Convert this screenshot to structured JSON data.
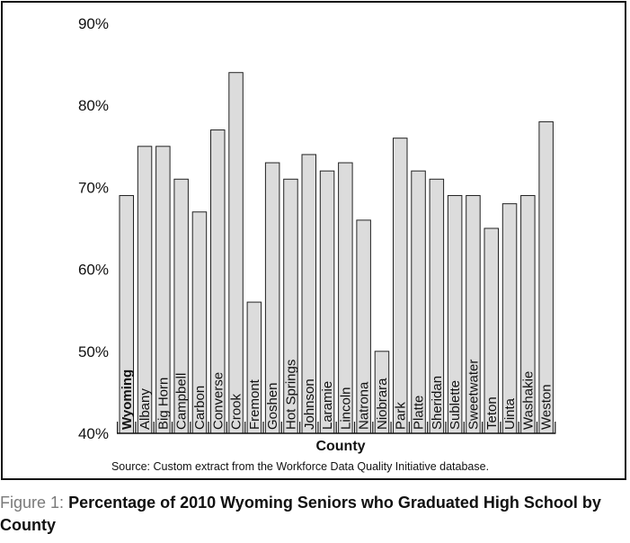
{
  "caption": {
    "figure_label": "Figure 1:",
    "title": "Percentage of 2010 Wyoming Seniors who Graduated High School by County"
  },
  "chart_data": {
    "type": "bar",
    "xlabel": "County",
    "ylabel": "",
    "source": "Source: Custom extract from the Workforce Data Quality Initiative database.",
    "ylim": [
      40,
      90
    ],
    "yticks": [
      "40%",
      "50%",
      "60%",
      "70%",
      "80%",
      "90%"
    ],
    "grid": false,
    "categories": [
      "Wyoming",
      "Albany",
      "Big Horn",
      "Campbell",
      "Carbon",
      "Converse",
      "Crook",
      "Fremont",
      "Goshen",
      "Hot Springs",
      "Johnson",
      "Laramie",
      "Lincoln",
      "Natrona",
      "Niobrara",
      "Park",
      "Platte",
      "Sheridan",
      "Sublette",
      "Sweetwater",
      "Teton",
      "Uinta",
      "Washakie",
      "Weston"
    ],
    "values": [
      69,
      75,
      75,
      71,
      67,
      77,
      84,
      56,
      73,
      71,
      74,
      72,
      73,
      66,
      50,
      76,
      72,
      71,
      69,
      69,
      65,
      68,
      69,
      78
    ],
    "highlight_category": "Wyoming",
    "bar_color": "#dcdcdc",
    "edge_color": "#222222"
  }
}
